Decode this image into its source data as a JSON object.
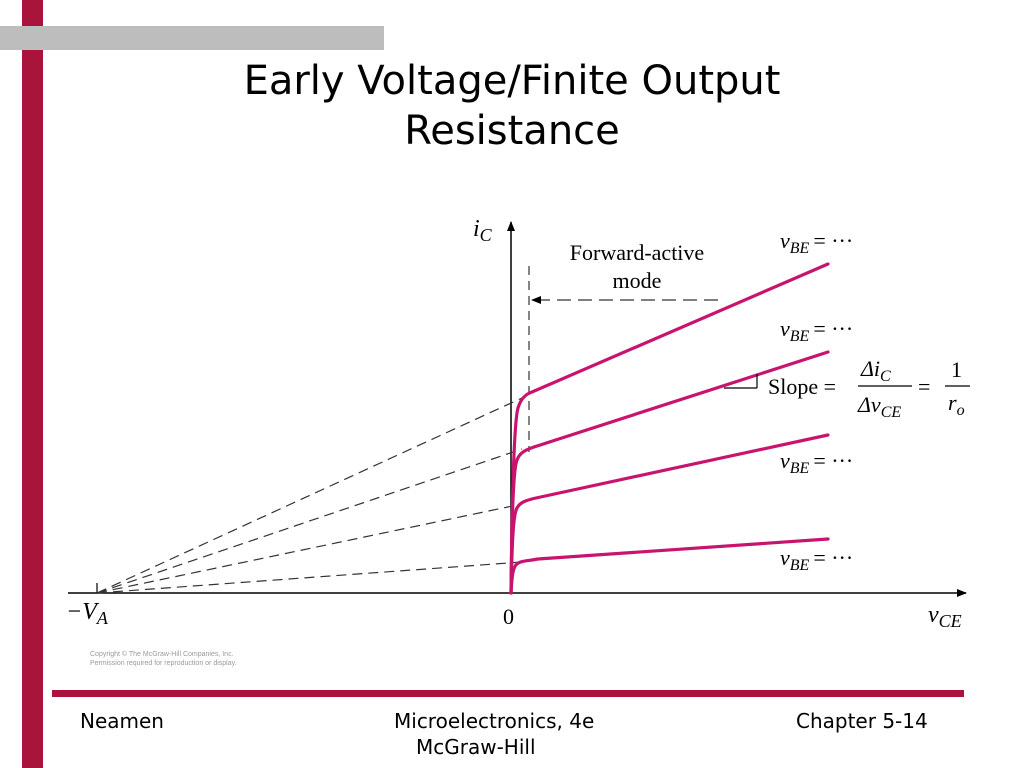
{
  "title": {
    "line1": "Early Voltage/Finite Output",
    "line2": "Resistance"
  },
  "diagram": {
    "y_axis_symbol": "i",
    "y_axis_subscript": "C",
    "x_axis_symbol": "v",
    "x_axis_subscript": "CE",
    "origin_label": "0",
    "va_label_prefix": "−V",
    "va_label_subscript": "A",
    "forward_active_line1": "Forward-active",
    "forward_active_line2": "mode",
    "curve_label_symbol": "v",
    "curve_label_subscript": "BE",
    "curve_label_value": "= ···",
    "slope_label": "Slope =",
    "slope_num_symbol": "Δi",
    "slope_num_subscript": "C",
    "slope_den_symbol": "Δv",
    "slope_den_subscript": "CE",
    "slope_equals": "=",
    "slope_one": "1",
    "slope_ro_symbol": "r",
    "slope_ro_subscript": "o",
    "curve_color": "#c8146e"
  },
  "copyright": {
    "line1": "Copyright © The McGraw-Hill Companies, Inc.",
    "line2": "Permission required for reproduction or display."
  },
  "footer": {
    "left": "Neamen",
    "center_line1": "Microelectronics, 4e",
    "center_line2": "McGraw-Hill",
    "right": "Chapter 5-14"
  },
  "colors": {
    "accent": "#a8143c",
    "top_bar": "#bdbdbd"
  }
}
